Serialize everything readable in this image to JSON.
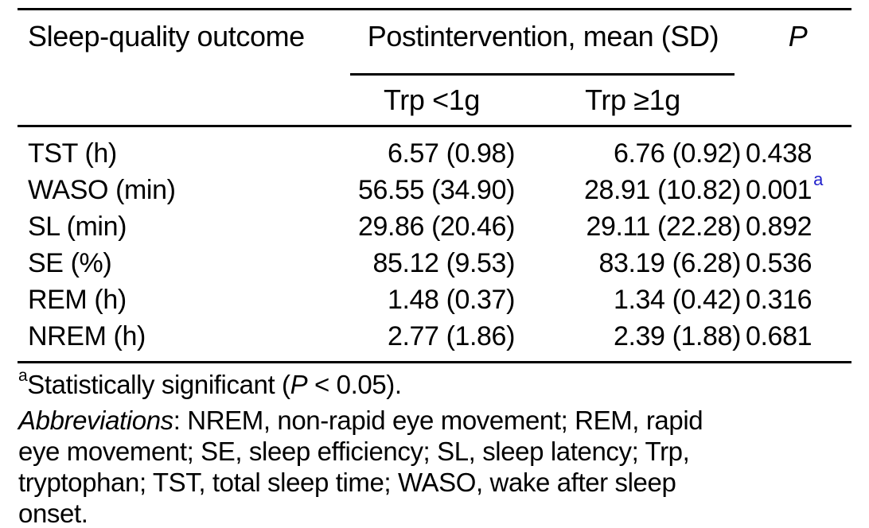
{
  "colors": {
    "text": "#000000",
    "rule": "#000000",
    "significance_marker_blue": "#2222cc"
  },
  "table": {
    "header": {
      "outcome": "Sleep-quality outcome",
      "spanner": "Postintervention, mean (SD)",
      "p": "P",
      "group1": "Trp <1g",
      "group2": "Trp ≥1g"
    },
    "rows": [
      {
        "outcome": "TST (h)",
        "trp_lt1g": "6.57 (0.98)",
        "trp_ge1g": "6.76 (0.92)",
        "p": "0.438"
      },
      {
        "outcome": "WASO (min)",
        "trp_lt1g": "56.55 (34.90)",
        "trp_ge1g": "28.91 (10.82)",
        "p": "0.001",
        "p_marker": "a"
      },
      {
        "outcome": "SL (min)",
        "trp_lt1g": "29.86 (20.46)",
        "trp_ge1g": "29.11 (22.28)",
        "p": "0.892"
      },
      {
        "outcome": "SE (%)",
        "trp_lt1g": "85.12 (9.53)",
        "trp_ge1g": "83.19 (6.28)",
        "p": "0.536"
      },
      {
        "outcome": "REM (h)",
        "trp_lt1g": "1.48 (0.37)",
        "trp_ge1g": "1.34 (0.42)",
        "p": "0.316"
      },
      {
        "outcome": "NREM (h)",
        "trp_lt1g": "2.77 (1.86)",
        "trp_ge1g": "2.39 (1.88)",
        "p": "0.681"
      }
    ]
  },
  "footnotes": {
    "significance": {
      "marker": "a",
      "before_p": "Statistically significant (",
      "p_symbol": "P",
      "after_p": " < 0.05)."
    },
    "abbreviations": {
      "label": "Abbreviations",
      "line1_rest": ": NREM, non-rapid eye movement; REM, rapid",
      "line2": "eye movement; SE, sleep efficiency; SL, sleep latency; Trp,",
      "line3": "tryptophan; TST, total sleep time; WASO, wake after sleep",
      "line4": "onset."
    }
  }
}
